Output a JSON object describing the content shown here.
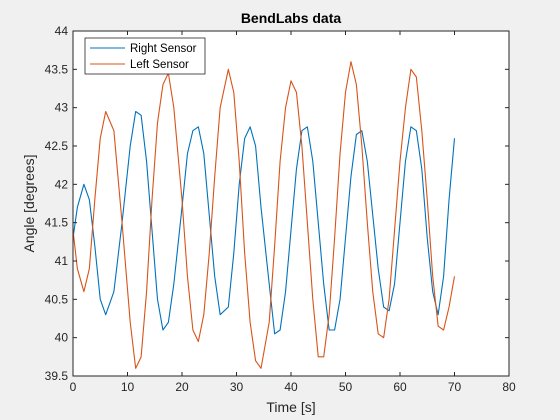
{
  "chart_data": {
    "type": "line",
    "title": "BendLabs data",
    "xlabel": "Time [s]",
    "ylabel": "Angle [degrees]",
    "xlim": [
      0,
      80
    ],
    "ylim": [
      39.5,
      44
    ],
    "xticks": [
      0,
      10,
      20,
      30,
      40,
      50,
      60,
      70,
      80
    ],
    "yticks": [
      39.5,
      40,
      40.5,
      41,
      41.5,
      42,
      42.5,
      43,
      43.5,
      44
    ],
    "grid": false,
    "legend_position": "top-left",
    "series": [
      {
        "name": "Right Sensor",
        "color": "#0072BD",
        "x": [
          0,
          0.8,
          2,
          3,
          4,
          5,
          6,
          7.5,
          9,
          10.5,
          11.5,
          12.5,
          13.5,
          14.5,
          15.5,
          16.5,
          17.5,
          18.5,
          20,
          21,
          22,
          23,
          24,
          25,
          26,
          27,
          28.5,
          29.5,
          30.5,
          31.5,
          32.5,
          33.5,
          34.5,
          36,
          37,
          38,
          39,
          40,
          41,
          42,
          43,
          44,
          45,
          46,
          47,
          48,
          49,
          50,
          51,
          52,
          53,
          54,
          55,
          56,
          57,
          58,
          59,
          60,
          61,
          62,
          63,
          64,
          65,
          66,
          67,
          68,
          69,
          70
        ],
        "y": [
          41.3,
          41.7,
          42.0,
          41.8,
          41.2,
          40.5,
          40.3,
          40.6,
          41.5,
          42.5,
          42.95,
          42.9,
          42.3,
          41.4,
          40.5,
          40.1,
          40.2,
          40.7,
          41.7,
          42.4,
          42.7,
          42.75,
          42.4,
          41.6,
          40.8,
          40.3,
          40.4,
          41.1,
          42.0,
          42.6,
          42.75,
          42.5,
          41.7,
          40.7,
          40.05,
          40.1,
          40.6,
          41.4,
          42.2,
          42.7,
          42.75,
          42.3,
          41.5,
          40.7,
          40.1,
          40.1,
          40.5,
          41.3,
          42.1,
          42.65,
          42.7,
          42.3,
          41.6,
          40.9,
          40.4,
          40.35,
          40.7,
          41.5,
          42.3,
          42.75,
          42.7,
          42.2,
          41.3,
          40.6,
          40.3,
          40.8,
          41.8,
          42.6
        ]
      },
      {
        "name": "Left Sensor",
        "color": "#D95319",
        "x": [
          0,
          0.8,
          2,
          3,
          4,
          5,
          6,
          7.5,
          9,
          10.5,
          11.5,
          12.5,
          13.5,
          14.5,
          15.5,
          16.5,
          17.5,
          18.5,
          20,
          21,
          22,
          23,
          24,
          25,
          26,
          27,
          28.5,
          29.5,
          30.5,
          31.5,
          32.5,
          33.5,
          34.5,
          36,
          37,
          38,
          39,
          40,
          41,
          42,
          43,
          44,
          45,
          46,
          47,
          48,
          49,
          50,
          51,
          52,
          53,
          54,
          55,
          56,
          57,
          58,
          59,
          60,
          61,
          62,
          63,
          64,
          65,
          66,
          67,
          68,
          69,
          70
        ],
        "y": [
          41.4,
          40.9,
          40.6,
          40.9,
          41.8,
          42.6,
          42.95,
          42.7,
          41.5,
          40.2,
          39.6,
          39.75,
          40.6,
          41.8,
          42.8,
          43.3,
          43.45,
          43.0,
          41.8,
          40.8,
          40.1,
          39.95,
          40.3,
          41.1,
          42.1,
          43.0,
          43.5,
          43.2,
          42.3,
          41.1,
          40.2,
          39.7,
          39.6,
          40.2,
          41.2,
          42.3,
          43.0,
          43.35,
          43.2,
          42.5,
          41.5,
          40.5,
          39.75,
          39.75,
          40.3,
          41.3,
          42.4,
          43.2,
          43.6,
          43.3,
          42.5,
          41.5,
          40.6,
          40.05,
          40.0,
          40.5,
          41.4,
          42.3,
          43.0,
          43.5,
          43.4,
          42.7,
          41.8,
          40.8,
          40.15,
          40.1,
          40.4,
          40.8
        ]
      }
    ]
  }
}
